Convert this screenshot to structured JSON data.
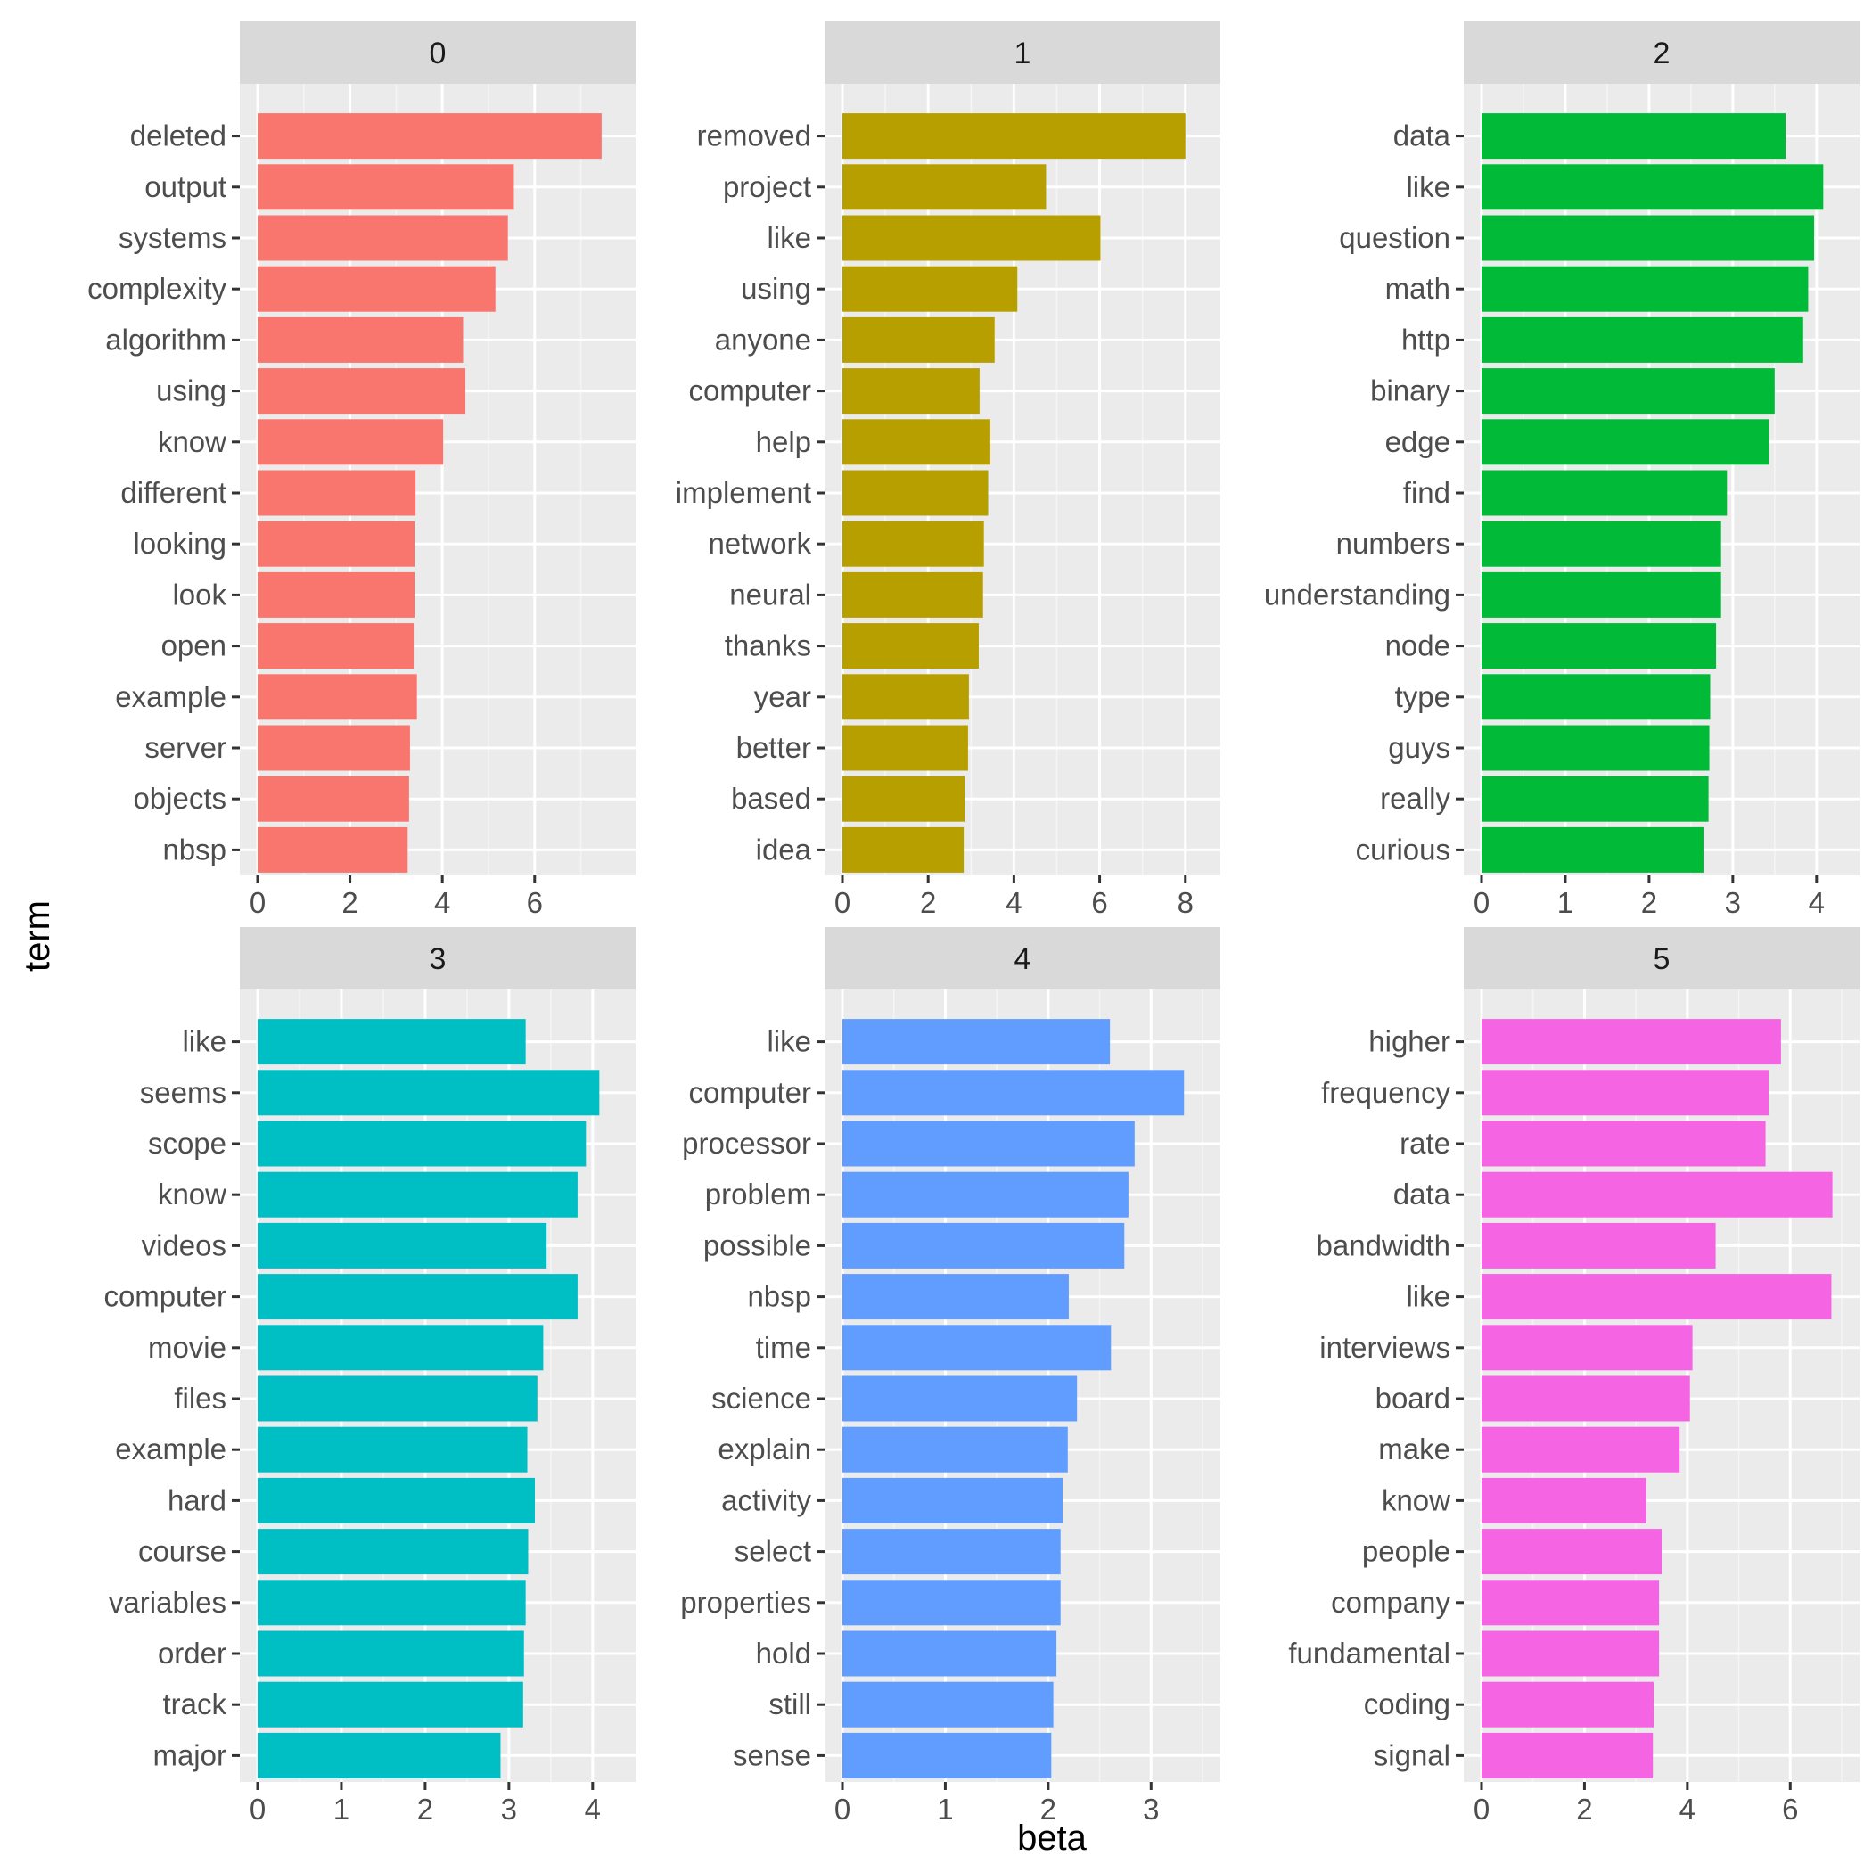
{
  "chart_data": {
    "type": "bar",
    "orientation": "horizontal",
    "facet_layout": "3 columns x 2 rows",
    "xlabel": "beta",
    "ylabel": "term",
    "grid": true,
    "legend": "none",
    "panels": [
      {
        "label": "0",
        "color": "#F8766D",
        "xlim": [
          0,
          7.8
        ],
        "xticks": [
          0,
          2,
          4,
          6
        ],
        "categories": [
          "deleted",
          "output",
          "systems",
          "complexity",
          "algorithm",
          "using",
          "know",
          "different",
          "looking",
          "look",
          "open",
          "example",
          "server",
          "objects",
          "nbsp"
        ],
        "values": [
          7.45,
          5.55,
          5.42,
          5.15,
          4.45,
          4.5,
          4.02,
          3.42,
          3.4,
          3.4,
          3.38,
          3.45,
          3.3,
          3.28,
          3.25
        ]
      },
      {
        "label": "1",
        "color": "#B79F00",
        "xlim": [
          0,
          8.4
        ],
        "xticks": [
          0,
          2,
          4,
          6,
          8
        ],
        "categories": [
          "removed",
          "project",
          "like",
          "using",
          "anyone",
          "computer",
          "help",
          "implement",
          "network",
          "neural",
          "thanks",
          "year",
          "better",
          "based",
          "idea"
        ],
        "values": [
          8.0,
          4.75,
          6.02,
          4.08,
          3.55,
          3.2,
          3.45,
          3.4,
          3.3,
          3.28,
          3.18,
          2.95,
          2.93,
          2.85,
          2.83
        ]
      },
      {
        "label": "2",
        "color": "#00BA38",
        "xlim": [
          0,
          4.3
        ],
        "xticks": [
          0,
          1,
          2,
          3,
          4
        ],
        "categories": [
          "data",
          "like",
          "question",
          "math",
          "http",
          "binary",
          "edge",
          "find",
          "numbers",
          "understanding",
          "node",
          "type",
          "guys",
          "really",
          "curious"
        ],
        "values": [
          3.63,
          4.08,
          3.97,
          3.9,
          3.84,
          3.5,
          3.43,
          2.93,
          2.86,
          2.86,
          2.8,
          2.73,
          2.72,
          2.71,
          2.65
        ]
      },
      {
        "label": "3",
        "color": "#00BFC4",
        "xlim": [
          0,
          4.3
        ],
        "xticks": [
          0,
          1,
          2,
          3,
          4
        ],
        "categories": [
          "like",
          "seems",
          "scope",
          "know",
          "videos",
          "computer",
          "movie",
          "files",
          "example",
          "hard",
          "course",
          "variables",
          "order",
          "track",
          "major"
        ],
        "values": [
          3.2,
          4.08,
          3.92,
          3.82,
          3.45,
          3.82,
          3.41,
          3.34,
          3.22,
          3.31,
          3.23,
          3.2,
          3.18,
          3.17,
          2.9
        ]
      },
      {
        "label": "4",
        "color": "#619CFF",
        "xlim": [
          0,
          3.5
        ],
        "xticks": [
          0,
          1,
          2,
          3
        ],
        "categories": [
          "like",
          "computer",
          "processor",
          "problem",
          "possible",
          "nbsp",
          "time",
          "science",
          "explain",
          "activity",
          "select",
          "properties",
          "hold",
          "still",
          "sense"
        ],
        "values": [
          2.6,
          3.32,
          2.84,
          2.78,
          2.74,
          2.2,
          2.61,
          2.28,
          2.19,
          2.14,
          2.12,
          2.12,
          2.08,
          2.05,
          2.03
        ]
      },
      {
        "label": "5",
        "color": "#F564E3",
        "xlim": [
          0,
          7.0
        ],
        "xticks": [
          0,
          2,
          4,
          6
        ],
        "categories": [
          "higher",
          "frequency",
          "rate",
          "data",
          "bandwidth",
          "like",
          "interviews",
          "board",
          "make",
          "know",
          "people",
          "company",
          "fundamental",
          "coding",
          "signal"
        ],
        "values": [
          5.82,
          5.58,
          5.52,
          6.82,
          4.55,
          6.8,
          4.1,
          4.05,
          3.85,
          3.2,
          3.5,
          3.45,
          3.45,
          3.35,
          3.33
        ]
      }
    ]
  }
}
